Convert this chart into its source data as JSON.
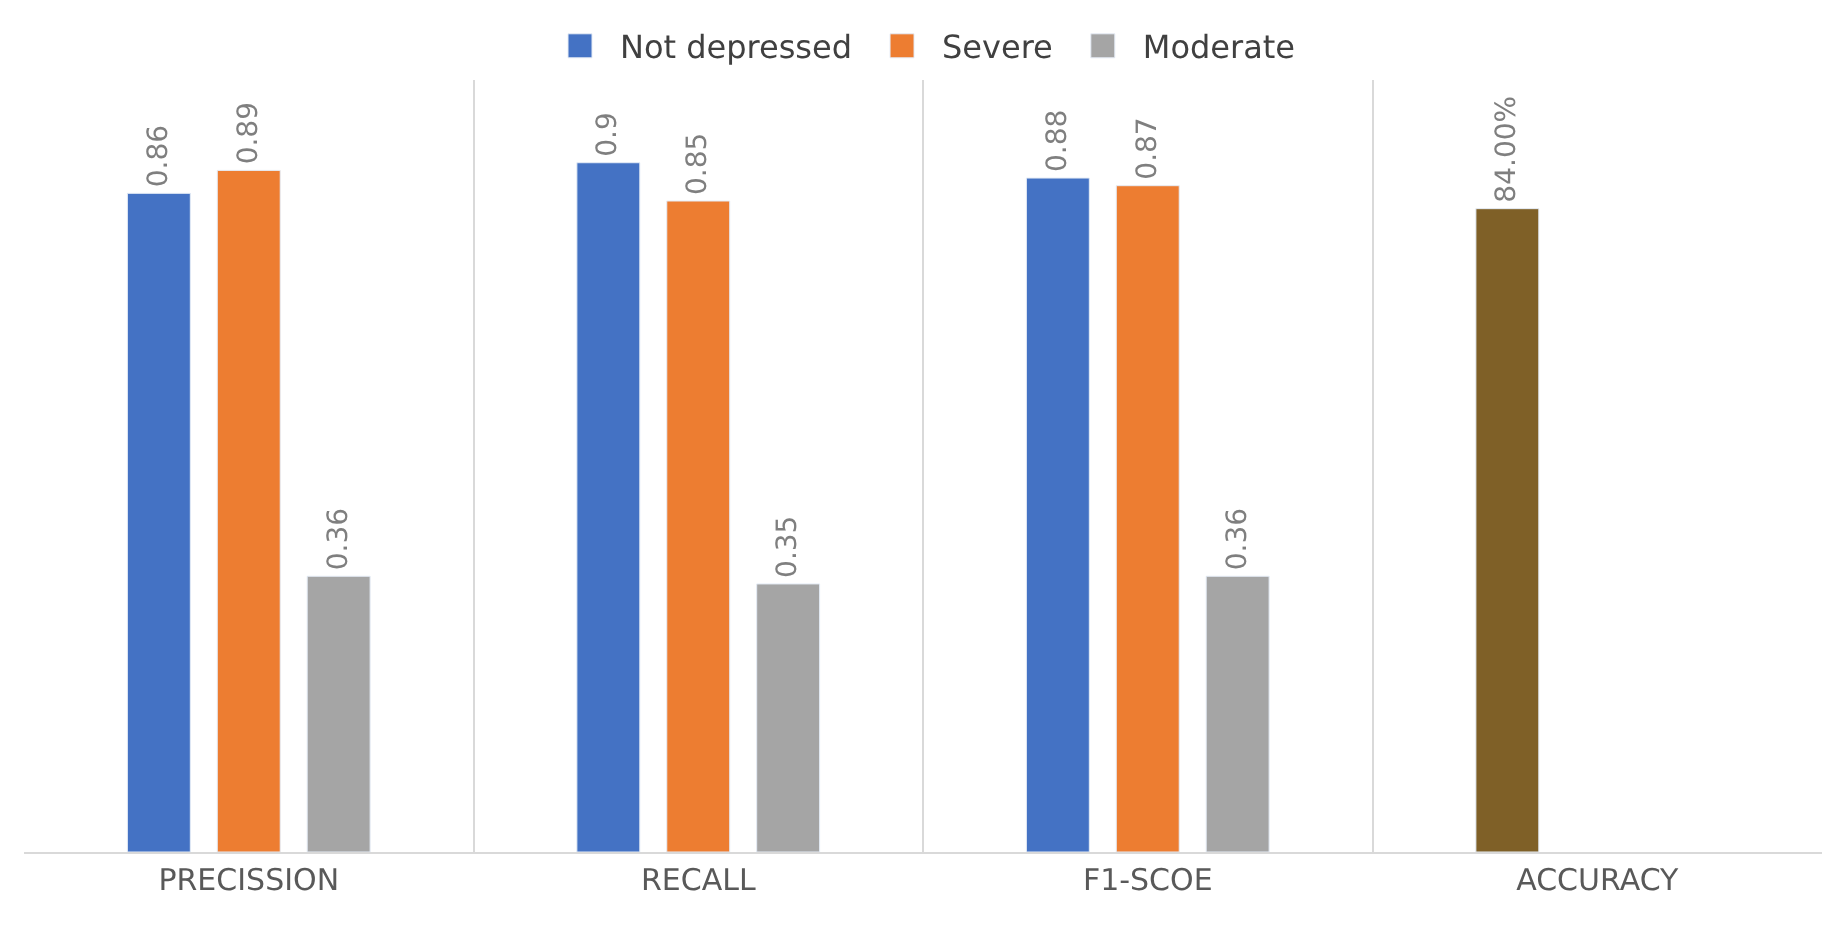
{
  "chart_data": {
    "type": "bar",
    "categories": [
      "PRECISSION",
      "RECALL",
      "F1-SCOE",
      "ACCURACY"
    ],
    "series": [
      {
        "name": "Not depressed",
        "color": "#4472c4",
        "colors": [
          "#4472c4",
          "#4472c4",
          "#4472c4",
          "#7f6027"
        ],
        "values": [
          0.86,
          0.9,
          0.88,
          0.84
        ],
        "value_labels": [
          "0.86",
          "0.9",
          "0.88",
          "84.00%"
        ]
      },
      {
        "name": "Severe",
        "color": "#ed7d31",
        "values": [
          0.89,
          0.85,
          0.87,
          null
        ],
        "value_labels": [
          "0.89",
          "0.85",
          "0.87",
          null
        ]
      },
      {
        "name": "Moderate",
        "color": "#a5a5a5",
        "values": [
          0.36,
          0.35,
          0.36,
          null
        ],
        "value_labels": [
          "0.36",
          "0.35",
          "0.36",
          null
        ]
      }
    ],
    "grid": "x",
    "legend": "top"
  }
}
